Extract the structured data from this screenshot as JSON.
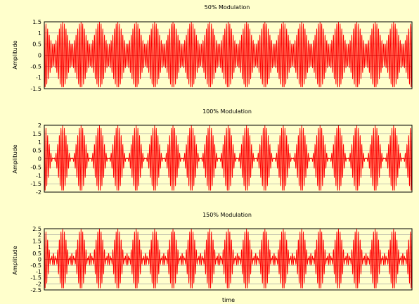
{
  "colors": {
    "background": "#ffffcc",
    "waveform": "#ff0000",
    "waveform_fill": "#ff6666",
    "grid": "#999999",
    "axes": "#000000"
  },
  "chart_data": [
    {
      "type": "line",
      "title": "50% Modulation",
      "ylabel": "Amplitude",
      "xlabel": "",
      "ylim": [
        -1.5,
        1.5
      ],
      "yticks": [
        "1.5",
        "1",
        "0.5",
        "0",
        "-0.5",
        "-1",
        "-1.5"
      ],
      "grid": true,
      "modulation_index": 0.5,
      "envelope_cycles": 20,
      "carrier_cycles_per_envelope": 11,
      "series": [
        {
          "values_formula": "(1 + 0.5*cos(2*pi*fm*t)) * cos(2*pi*fc*t)"
        }
      ]
    },
    {
      "type": "line",
      "title": "100% Modulation",
      "ylabel": "Amplitude",
      "xlabel": "",
      "ylim": [
        -2,
        2
      ],
      "yticks": [
        "2",
        "1.5",
        "1",
        "0.5",
        "0",
        "-0.5",
        "-1",
        "-1.5",
        "-2"
      ],
      "grid": true,
      "modulation_index": 1.0,
      "envelope_cycles": 20,
      "carrier_cycles_per_envelope": 11,
      "series": [
        {
          "values_formula": "(1 + 1.0*cos(2*pi*fm*t)) * cos(2*pi*fc*t)"
        }
      ]
    },
    {
      "type": "line",
      "title": "150% Modulation",
      "ylabel": "Amplitude",
      "xlabel": "time",
      "ylim": [
        -2.5,
        2.5
      ],
      "yticks": [
        "2.5",
        "2",
        "1.5",
        "1",
        "0.5",
        "0",
        "-0.5",
        "-1",
        "-1.5",
        "-2",
        "-2.5"
      ],
      "grid": true,
      "modulation_index": 1.5,
      "envelope_cycles": 20,
      "carrier_cycles_per_envelope": 11,
      "series": [
        {
          "values_formula": "(1 + 1.5*cos(2*pi*fm*t)) * cos(2*pi*fc*t)"
        }
      ]
    }
  ]
}
